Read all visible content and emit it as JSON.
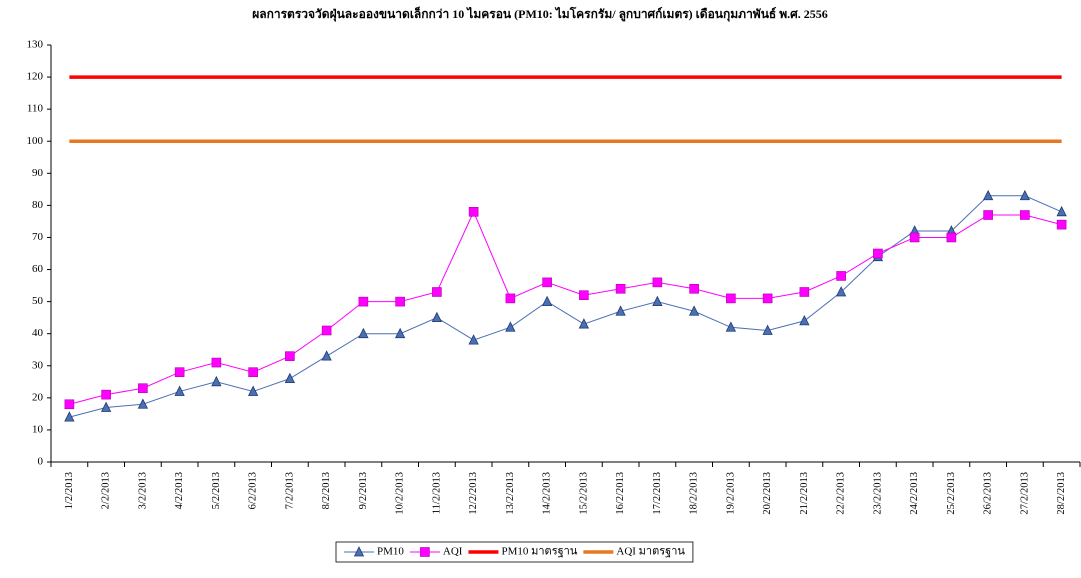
{
  "chart_data": {
    "type": "line",
    "title": "ผลการตรวจวัดฝุ่นละอองขนาดเล็กกว่า 10 ไมครอน (PM10: ไมโครกรัม/ ลูกบาศก์เมตร) เดือนกุมภาพันธ์ พ.ศ. 2556",
    "categories": [
      "1/2/2013",
      "2/2/2013",
      "3/2/2013",
      "4/2/2013",
      "5/2/2013",
      "6/2/2013",
      "7/2/2013",
      "8/2/2013",
      "9/2/2013",
      "10/2/2013",
      "11/2/2013",
      "12/2/2013",
      "13/2/2013",
      "14/2/2013",
      "15/2/2013",
      "16/2/2013",
      "17/2/2013",
      "18/2/2013",
      "19/2/2013",
      "20/2/2013",
      "21/2/2013",
      "22/2/2013",
      "23/2/2013",
      "24/2/2013",
      "25/2/2013",
      "26/2/2013",
      "27/2/2013",
      "28/2/2013"
    ],
    "series": [
      {
        "name": "PM10",
        "color": "#4a6fb5",
        "marker": "triangle",
        "values": [
          14,
          17,
          18,
          22,
          25,
          22,
          26,
          33,
          40,
          40,
          45,
          38,
          42,
          50,
          43,
          47,
          50,
          47,
          42,
          41,
          44,
          53,
          64,
          72,
          72,
          83,
          83,
          78
        ]
      },
      {
        "name": "AQI",
        "color": "#ff00ff",
        "marker": "square",
        "values": [
          18,
          21,
          23,
          28,
          31,
          28,
          33,
          41,
          50,
          50,
          53,
          78,
          51,
          56,
          52,
          54,
          56,
          54,
          51,
          51,
          53,
          58,
          65,
          70,
          70,
          77,
          77,
          74
        ]
      },
      {
        "name": "PM10 มาตรฐาน",
        "color": "#ff0000",
        "marker": "none",
        "values": [
          120,
          120,
          120,
          120,
          120,
          120,
          120,
          120,
          120,
          120,
          120,
          120,
          120,
          120,
          120,
          120,
          120,
          120,
          120,
          120,
          120,
          120,
          120,
          120,
          120,
          120,
          120,
          120
        ]
      },
      {
        "name": "AQI มาตรฐาน",
        "color": "#e87722",
        "marker": "none",
        "values": [
          100,
          100,
          100,
          100,
          100,
          100,
          100,
          100,
          100,
          100,
          100,
          100,
          100,
          100,
          100,
          100,
          100,
          100,
          100,
          100,
          100,
          100,
          100,
          100,
          100,
          100,
          100,
          100
        ]
      }
    ],
    "ylim": [
      0,
      130
    ],
    "yticks": [
      0,
      10,
      20,
      30,
      40,
      50,
      60,
      70,
      80,
      90,
      100,
      110,
      120,
      130
    ],
    "grid": false,
    "legend": "bottom"
  }
}
